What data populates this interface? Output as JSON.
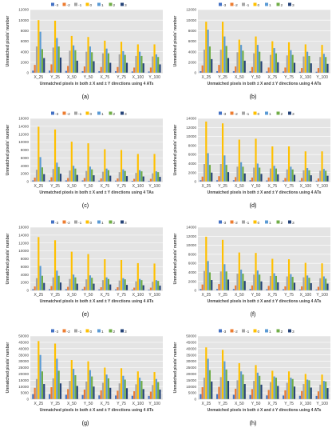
{
  "figure": {
    "legend_labels": [
      "-3",
      "-2",
      "-1",
      "0",
      "1",
      "2",
      "3"
    ],
    "series_colors": [
      "#4472C4",
      "#ED7D31",
      "#A5A5A5",
      "#FFC000",
      "#5B9BD5",
      "#70AD47",
      "#264478"
    ],
    "plot_bg": "#E4E4E4",
    "panel_letters": [
      "(a)",
      "(b)",
      "(c)",
      "(d)",
      "(e)",
      "(f)",
      "(g)",
      "(h)"
    ]
  },
  "chart_data": [
    {
      "type": "bar",
      "panel": "(a)",
      "categories": [
        "X_25",
        "Y_25",
        "X_50",
        "Y_50",
        "X_75",
        "Y_75",
        "X_100",
        "Y_100"
      ],
      "ylabel": "Unmatched pixels' number",
      "xlabel": "Unmatched pixels in both ± X and ± Y directions using 4 ATs",
      "ylim": [
        0,
        12000
      ],
      "yticks": [
        0,
        2000,
        4000,
        6000,
        8000,
        10000,
        12000
      ],
      "grid": true,
      "legend_position": "top",
      "series": [
        {
          "name": "-3",
          "values": [
            400,
            400,
            350,
            300,
            300,
            300,
            250,
            250
          ]
        },
        {
          "name": "-2",
          "values": [
            1500,
            1600,
            1300,
            1200,
            1100,
            1100,
            1000,
            1000
          ]
        },
        {
          "name": "-1",
          "values": [
            5000,
            4800,
            4200,
            4000,
            3700,
            3500,
            3200,
            3100
          ]
        },
        {
          "name": "0",
          "values": [
            10000,
            9900,
            7000,
            6800,
            6100,
            5900,
            5400,
            5400
          ]
        },
        {
          "name": "1",
          "values": [
            7800,
            6600,
            5200,
            5000,
            4600,
            4100,
            4000,
            3500
          ]
        },
        {
          "name": "2",
          "values": [
            4500,
            5000,
            4300,
            3900,
            3700,
            3400,
            3200,
            3000
          ]
        },
        {
          "name": "3",
          "values": [
            2800,
            2900,
            2300,
            2200,
            1900,
            1900,
            1800,
            1600
          ]
        }
      ]
    },
    {
      "type": "bar",
      "panel": "(b)",
      "categories": [
        "X_25",
        "Y_25",
        "X_50",
        "Y_50",
        "X_75",
        "Y_75",
        "X_100",
        "Y_100"
      ],
      "ylabel": "Unmatched pixels' number",
      "xlabel": "Unmatched pixels in both ± X and ± Y directions using 4 ATs",
      "ylim": [
        0,
        12000
      ],
      "yticks": [
        0,
        2000,
        4000,
        6000,
        8000,
        10000,
        12000
      ],
      "grid": true,
      "legend_position": "top",
      "series": [
        {
          "name": "-3",
          "values": [
            300,
            300,
            300,
            300,
            250,
            250,
            200,
            200
          ]
        },
        {
          "name": "-2",
          "values": [
            1400,
            1500,
            1200,
            1100,
            1000,
            1000,
            900,
            900
          ]
        },
        {
          "name": "-1",
          "values": [
            4400,
            4400,
            3900,
            3700,
            3400,
            3300,
            3100,
            3000
          ]
        },
        {
          "name": "0",
          "values": [
            9700,
            9700,
            6300,
            6900,
            6000,
            5800,
            5400,
            5300
          ]
        },
        {
          "name": "1",
          "values": [
            8200,
            6900,
            5300,
            5300,
            4700,
            4300,
            4000,
            3600
          ]
        },
        {
          "name": "2",
          "values": [
            5000,
            5100,
            4200,
            4000,
            3700,
            3400,
            3200,
            3000
          ]
        },
        {
          "name": "3",
          "values": [
            2600,
            2800,
            2300,
            2200,
            2000,
            1900,
            1800,
            1700
          ]
        }
      ]
    },
    {
      "type": "bar",
      "panel": "(c)",
      "categories": [
        "X_25",
        "Y_25",
        "X_50",
        "Y_50",
        "X_75",
        "Y_75",
        "X_100",
        "Y_100"
      ],
      "ylabel": "Unmatched pixels' number",
      "xlabel": "Unmatched pixels in both ± X and ± Y directions using 4 TAs",
      "ylim": [
        0,
        16000
      ],
      "yticks": [
        0,
        2000,
        4000,
        6000,
        8000,
        10000,
        12000,
        14000,
        16000
      ],
      "grid": true,
      "legend_position": "top",
      "series": [
        {
          "name": "-3",
          "values": [
            300,
            300,
            300,
            300,
            250,
            250,
            200,
            200
          ]
        },
        {
          "name": "-2",
          "values": [
            1000,
            1100,
            900,
            900,
            800,
            800,
            700,
            700
          ]
        },
        {
          "name": "-1",
          "values": [
            3000,
            3200,
            2800,
            2700,
            2500,
            2400,
            2200,
            2100
          ]
        },
        {
          "name": "0",
          "values": [
            13900,
            13200,
            10100,
            9700,
            8200,
            8000,
            7000,
            7000
          ]
        },
        {
          "name": "1",
          "values": [
            6200,
            4800,
            4000,
            3800,
            3300,
            3100,
            2900,
            2600
          ]
        },
        {
          "name": "2",
          "values": [
            3600,
            3700,
            3300,
            3100,
            2900,
            2700,
            2600,
            2400
          ]
        },
        {
          "name": "3",
          "values": [
            1900,
            2000,
            1700,
            1600,
            1500,
            1400,
            1300,
            1200
          ]
        }
      ]
    },
    {
      "type": "bar",
      "panel": "(d)",
      "categories": [
        "X_25",
        "Y_25",
        "X_50",
        "Y_50",
        "X_75",
        "Y_75",
        "X_100",
        "Y_100"
      ],
      "ylabel": "Unmatched pixels' number",
      "xlabel": "Unmatched pixels in both ± X and ± Y directions using 4 ATs",
      "ylim": [
        0,
        14000
      ],
      "yticks": [
        0,
        2000,
        4000,
        6000,
        8000,
        10000,
        12000,
        14000
      ],
      "grid": true,
      "legend_position": "top",
      "series": [
        {
          "name": "-3",
          "values": [
            300,
            300,
            300,
            300,
            250,
            250,
            200,
            200
          ]
        },
        {
          "name": "-2",
          "values": [
            1100,
            1200,
            1000,
            900,
            900,
            800,
            800,
            700
          ]
        },
        {
          "name": "-1",
          "values": [
            3900,
            3900,
            3300,
            3100,
            2900,
            2700,
            2500,
            2400
          ]
        },
        {
          "name": "0",
          "values": [
            13300,
            12900,
            9300,
            9500,
            7800,
            7800,
            6700,
            6700
          ]
        },
        {
          "name": "1",
          "values": [
            6300,
            5800,
            4300,
            4000,
            3500,
            3300,
            3000,
            2800
          ]
        },
        {
          "name": "2",
          "values": [
            3700,
            3700,
            3300,
            3100,
            2900,
            2700,
            2500,
            2400
          ]
        },
        {
          "name": "3",
          "values": [
            2000,
            2100,
            1800,
            1700,
            1600,
            1500,
            1400,
            1300
          ]
        }
      ]
    },
    {
      "type": "bar",
      "panel": "(e)",
      "categories": [
        "X_25",
        "Y_25",
        "X_50",
        "Y_50",
        "X_75",
        "Y_75",
        "X_100",
        "Y_100"
      ],
      "ylabel": "Unmatched pixels' number",
      "xlabel": "Unmatched pixels in both ± X and ± Y directions using 4 ATs",
      "ylim": [
        0,
        16000
      ],
      "yticks": [
        0,
        2000,
        4000,
        6000,
        8000,
        10000,
        12000,
        14000,
        16000
      ],
      "grid": true,
      "legend_position": "top",
      "series": [
        {
          "name": "-3",
          "values": [
            300,
            300,
            300,
            300,
            250,
            250,
            200,
            200
          ]
        },
        {
          "name": "-2",
          "values": [
            1000,
            1100,
            900,
            900,
            800,
            800,
            700,
            700
          ]
        },
        {
          "name": "-1",
          "values": [
            3100,
            3300,
            2900,
            2800,
            2600,
            2500,
            2300,
            2200
          ]
        },
        {
          "name": "0",
          "values": [
            13500,
            12700,
            9800,
            9200,
            7900,
            7700,
            6900,
            6800
          ]
        },
        {
          "name": "1",
          "values": [
            6200,
            5000,
            4000,
            3800,
            3300,
            3100,
            2900,
            2600
          ]
        },
        {
          "name": "2",
          "values": [
            3700,
            3700,
            3300,
            3200,
            2900,
            2800,
            2600,
            2400
          ]
        },
        {
          "name": "3",
          "values": [
            1900,
            2000,
            1700,
            1700,
            1500,
            1400,
            1300,
            1200
          ]
        }
      ]
    },
    {
      "type": "bar",
      "panel": "(f)",
      "categories": [
        "X_25",
        "Y_25",
        "X_50",
        "Y_50",
        "X_75",
        "Y_75",
        "X_100",
        "Y_100"
      ],
      "ylabel": "Unmatched pixels' number",
      "xlabel": "Unmatched pixels in both ± X and ± Y directions using 4 ATs",
      "ylim": [
        0,
        14000
      ],
      "yticks": [
        0,
        2000,
        4000,
        6000,
        8000,
        10000,
        12000,
        14000
      ],
      "grid": true,
      "legend_position": "top",
      "series": [
        {
          "name": "-3",
          "values": [
            300,
            300,
            300,
            300,
            250,
            250,
            200,
            200
          ]
        },
        {
          "name": "-2",
          "values": [
            1300,
            1400,
            1100,
            1100,
            1000,
            900,
            900,
            800
          ]
        },
        {
          "name": "-1",
          "values": [
            4300,
            4200,
            3700,
            3500,
            3200,
            3100,
            2900,
            2700
          ]
        },
        {
          "name": "0",
          "values": [
            11900,
            11200,
            8400,
            8300,
            7000,
            6900,
            6100,
            6000
          ]
        },
        {
          "name": "1",
          "values": [
            6500,
            5800,
            4600,
            4400,
            3800,
            3600,
            3300,
            3100
          ]
        },
        {
          "name": "2",
          "values": [
            4000,
            4200,
            3700,
            3500,
            3200,
            3000,
            2800,
            2600
          ]
        },
        {
          "name": "3",
          "values": [
            2300,
            2400,
            2100,
            2000,
            1800,
            1700,
            1600,
            1500
          ]
        }
      ]
    },
    {
      "type": "bar",
      "panel": "(g)",
      "categories": [
        "X_25",
        "Y_25",
        "X_50",
        "Y_50",
        "X_75",
        "Y_75",
        "X_100",
        "Y_100"
      ],
      "ylabel": "Unmatched pixels' number",
      "xlabel": "Unmatched pixels in both ± X and ± Y directions using 4 ATs",
      "ylim": [
        0,
        50000
      ],
      "yticks": [
        0,
        5000,
        10000,
        15000,
        20000,
        25000,
        30000,
        35000,
        40000,
        45000,
        50000
      ],
      "grid": true,
      "legend_position": "top",
      "series": [
        {
          "name": "-3",
          "values": [
            4000,
            4000,
            3500,
            3300,
            3000,
            2900,
            2700,
            2600
          ]
        },
        {
          "name": "-2",
          "values": [
            9000,
            9500,
            8000,
            7600,
            7000,
            6700,
            6300,
            6000
          ]
        },
        {
          "name": "-1",
          "values": [
            16000,
            16500,
            14500,
            14000,
            13000,
            12500,
            11800,
            11200
          ]
        },
        {
          "name": "0",
          "values": [
            46000,
            44000,
            31000,
            30000,
            25000,
            24500,
            22000,
            21500
          ]
        },
        {
          "name": "1",
          "values": [
            35000,
            32000,
            24000,
            23000,
            19500,
            18500,
            17000,
            16000
          ]
        },
        {
          "name": "2",
          "values": [
            22000,
            22500,
            19000,
            18000,
            16500,
            15500,
            14500,
            13500
          ]
        },
        {
          "name": "3",
          "values": [
            12000,
            12500,
            10500,
            10000,
            9000,
            8700,
            8000,
            7600
          ]
        }
      ]
    },
    {
      "type": "bar",
      "panel": "(h)",
      "categories": [
        "X_25",
        "Y_25",
        "X_50",
        "Y_50",
        "X_75",
        "Y_75",
        "X_100",
        "Y_100"
      ],
      "ylabel": "Unmatched pixels' number",
      "xlabel": "Unmatched pixels in both ± X and ± Y directions using 4 ATs",
      "ylim": [
        0,
        50000
      ],
      "yticks": [
        0,
        5000,
        10000,
        15000,
        20000,
        25000,
        30000,
        35000,
        40000,
        45000,
        50000
      ],
      "grid": true,
      "legend_position": "top",
      "series": [
        {
          "name": "-3",
          "values": [
            4000,
            4000,
            3500,
            3300,
            3000,
            2900,
            2700,
            2600
          ]
        },
        {
          "name": "-2",
          "values": [
            9500,
            9800,
            8300,
            8000,
            7300,
            7000,
            6500,
            6200
          ]
        },
        {
          "name": "-1",
          "values": [
            17000,
            17500,
            15000,
            14500,
            13500,
            13000,
            12000,
            11500
          ]
        },
        {
          "name": "0",
          "values": [
            41000,
            39000,
            28500,
            27000,
            22500,
            22000,
            20000,
            19500
          ]
        },
        {
          "name": "1",
          "values": [
            32000,
            30000,
            22000,
            21000,
            18000,
            17000,
            15500,
            14500
          ]
        },
        {
          "name": "2",
          "values": [
            23000,
            23500,
            19500,
            18500,
            17000,
            16000,
            15000,
            14000
          ]
        },
        {
          "name": "3",
          "values": [
            14000,
            14500,
            12000,
            11500,
            10500,
            10000,
            9200,
            8800
          ]
        }
      ]
    }
  ]
}
